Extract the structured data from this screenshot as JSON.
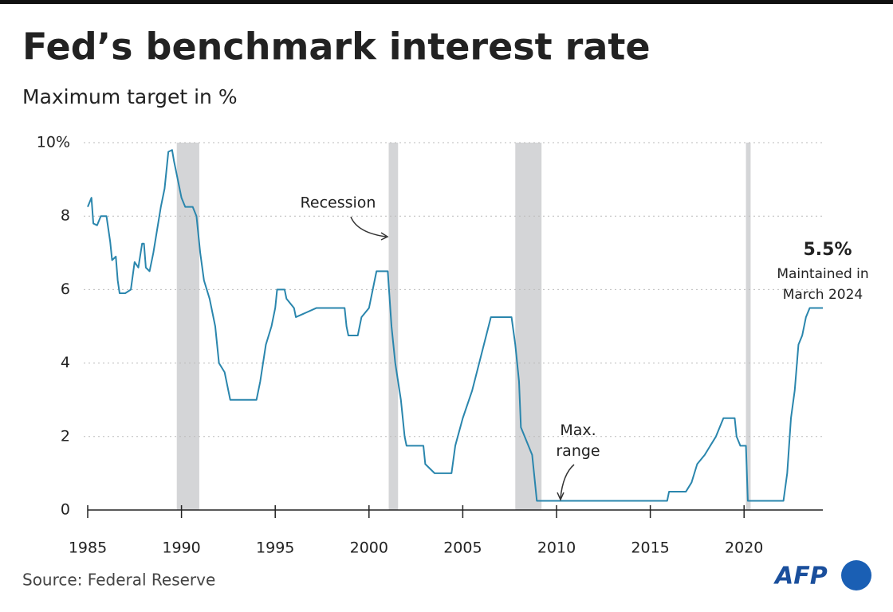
{
  "chart_data": {
    "type": "line",
    "title": "Fed’s benchmark interest rate",
    "subtitle": "Maximum target in %",
    "source": "Source: Federal Reserve",
    "logo": "AFP",
    "color": "#2a86ad",
    "x": [
      1985.0,
      1985.2,
      1985.3,
      1985.5,
      1985.7,
      1986.0,
      1986.2,
      1986.3,
      1986.5,
      1986.6,
      1986.7,
      1987.0,
      1987.3,
      1987.5,
      1987.7,
      1987.9,
      1988.0,
      1988.1,
      1988.3,
      1988.5,
      1988.9,
      1989.1,
      1989.3,
      1989.5,
      1989.6,
      1989.8,
      1990.0,
      1990.2,
      1990.6,
      1990.8,
      1991.0,
      1991.2,
      1991.5,
      1991.8,
      1992.0,
      1992.3,
      1992.6,
      1994.0,
      1994.2,
      1994.5,
      1994.8,
      1995.0,
      1995.1,
      1995.5,
      1995.6,
      1996.0,
      1996.1,
      1997.2,
      1998.7,
      1998.8,
      1998.9,
      1999.4,
      1999.6,
      2000.0,
      2000.3,
      2000.4,
      2001.0,
      2001.2,
      2001.4,
      2001.7,
      2001.9,
      2002.0,
      2002.9,
      2003.0,
      2003.5,
      2004.4,
      2004.6,
      2005.0,
      2005.5,
      2006.0,
      2006.5,
      2007.6,
      2007.8,
      2008.0,
      2008.1,
      2008.3,
      2008.7,
      2008.8,
      2008.95,
      2015.9,
      2016.0,
      2016.9,
      2017.2,
      2017.5,
      2017.9,
      2018.2,
      2018.5,
      2018.9,
      2019.5,
      2019.6,
      2019.8,
      2020.1,
      2020.2,
      2022.1,
      2022.3,
      2022.5,
      2022.7,
      2022.9,
      2023.1,
      2023.3,
      2023.5,
      2024.2
    ],
    "values": [
      8.25,
      8.5,
      7.8,
      7.75,
      8.0,
      8.0,
      7.3,
      6.8,
      6.9,
      6.25,
      5.9,
      5.9,
      6.0,
      6.75,
      6.6,
      7.25,
      7.25,
      6.6,
      6.5,
      7.0,
      8.25,
      8.75,
      9.75,
      9.8,
      9.5,
      9.0,
      8.5,
      8.25,
      8.25,
      8.0,
      7.0,
      6.25,
      5.75,
      5.0,
      4.0,
      3.75,
      3.0,
      3.0,
      3.5,
      4.5,
      5.0,
      5.5,
      6.0,
      6.0,
      5.75,
      5.5,
      5.25,
      5.5,
      5.5,
      5.0,
      4.75,
      4.75,
      5.25,
      5.5,
      6.25,
      6.5,
      6.5,
      5.0,
      4.0,
      3.0,
      2.0,
      1.75,
      1.75,
      1.25,
      1.0,
      1.0,
      1.75,
      2.5,
      3.25,
      4.25,
      5.25,
      5.25,
      4.5,
      3.5,
      2.25,
      2.0,
      1.5,
      1.0,
      0.25,
      0.25,
      0.5,
      0.5,
      0.75,
      1.25,
      1.5,
      1.75,
      2.0,
      2.5,
      2.5,
      2.0,
      1.75,
      1.75,
      0.25,
      0.25,
      1.0,
      2.5,
      3.25,
      4.5,
      4.75,
      5.25,
      5.5,
      5.5
    ],
    "recessions": [
      {
        "start": 1989.75,
        "end": 1990.95
      },
      {
        "start": 2001.05,
        "end": 2001.55
      },
      {
        "start": 2007.8,
        "end": 2009.2
      },
      {
        "start": 2020.1,
        "end": 2020.35
      }
    ],
    "xlim": [
      1985,
      2024.2
    ],
    "xticks": [
      1985,
      1990,
      1995,
      2000,
      2005,
      2010,
      2015,
      2020
    ],
    "ylim": [
      0,
      10
    ],
    "yticks": [
      0,
      2,
      4,
      6,
      8,
      {
        "value": 10,
        "label": "10%"
      }
    ],
    "grid": true,
    "annotations": {
      "recession": "Recession",
      "max_range": "Max. range",
      "last_value": "5.5%",
      "last_note": "Maintained in March 2024"
    }
  }
}
